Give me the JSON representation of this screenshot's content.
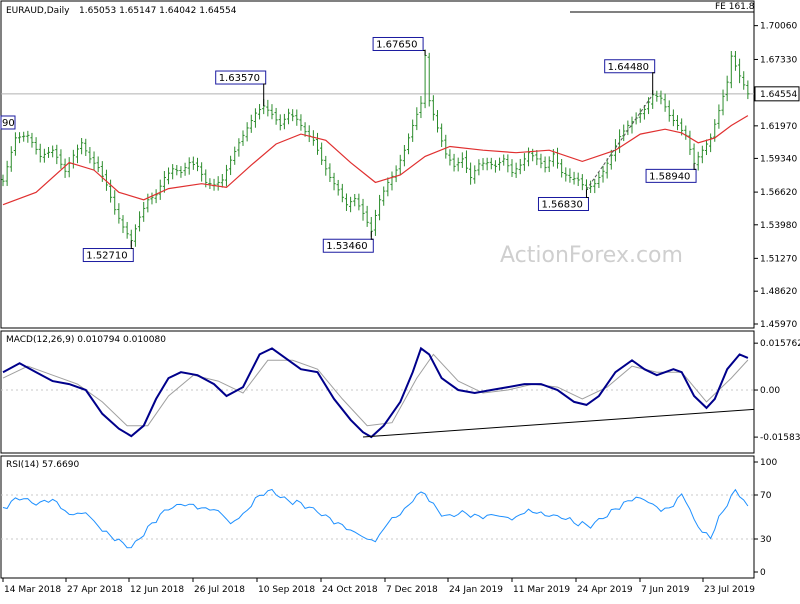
{
  "header": {
    "symbol_line": "EURAUD,Daily",
    "ohlc": "1.65053 1.65147 1.64042 1.64554",
    "fe_label": "FE 161.8"
  },
  "watermark": "ActionForex.com",
  "macd_header": "MACD(12,26,9) 0.010794 0.010080",
  "rsi_header": "RSI(14) 57.6690",
  "colors": {
    "price_bars": "#2c8c2c",
    "moving_average": "#e03030",
    "macd_line": "#00008b",
    "signal_line": "#a0a0a0",
    "rsi_line": "#1e90ff",
    "annotation_box": "#1a1aa0",
    "trendline": "#000000"
  },
  "chart_data": [
    {
      "type": "candlestick",
      "title": "EURAUD,Daily",
      "ylim": [
        1.4597,
        1.71
      ],
      "y_ticks": [
        "1.70060",
        "1.67330",
        "1.64554",
        "1.61970",
        "1.59340",
        "1.56620",
        "1.53980",
        "1.51270",
        "1.48620",
        "1.45970"
      ],
      "x_ticks": [
        "14 Mar 2018",
        "27 Apr 2018",
        "12 Jun 2018",
        "26 Jul 2018",
        "10 Sep 2018",
        "24 Oct 2018",
        "7 Dec 2018",
        "24 Jan 2019",
        "11 Mar 2019",
        "24 Apr 2019",
        "7 Jun 2019",
        "23 Jul 2019"
      ],
      "last_price": "1.64554",
      "price_path": [
        [
          0,
          1.575
        ],
        [
          3,
          1.61
        ],
        [
          6,
          1.612
        ],
        [
          9,
          1.595
        ],
        [
          12,
          1.6
        ],
        [
          15,
          1.583
        ],
        [
          17,
          1.596
        ],
        [
          19,
          1.606
        ],
        [
          21,
          1.593
        ],
        [
          23,
          1.586
        ],
        [
          25,
          1.572
        ],
        [
          27,
          1.552
        ],
        [
          29,
          1.538
        ],
        [
          31,
          1.5271
        ],
        [
          33,
          1.546
        ],
        [
          35,
          1.56
        ],
        [
          37,
          1.564
        ],
        [
          39,
          1.578
        ],
        [
          41,
          1.585
        ],
        [
          43,
          1.582
        ],
        [
          45,
          1.59
        ],
        [
          47,
          1.587
        ],
        [
          49,
          1.574
        ],
        [
          51,
          1.572
        ],
        [
          53,
          1.576
        ],
        [
          55,
          1.592
        ],
        [
          57,
          1.606
        ],
        [
          59,
          1.618
        ],
        [
          61,
          1.63
        ],
        [
          63,
          1.6357
        ],
        [
          65,
          1.629
        ],
        [
          67,
          1.62
        ],
        [
          69,
          1.63
        ],
        [
          71,
          1.625
        ],
        [
          73,
          1.615
        ],
        [
          75,
          1.608
        ],
        [
          77,
          1.592
        ],
        [
          79,
          1.578
        ],
        [
          81,
          1.568
        ],
        [
          83,
          1.556
        ],
        [
          85,
          1.561
        ],
        [
          87,
          1.549
        ],
        [
          89,
          1.5346
        ],
        [
          91,
          1.56
        ],
        [
          93,
          1.574
        ],
        [
          95,
          1.584
        ],
        [
          97,
          1.6
        ],
        [
          99,
          1.62
        ],
        [
          101,
          1.638
        ],
        [
          102,
          1.6765
        ],
        [
          103,
          1.64
        ],
        [
          105,
          1.618
        ],
        [
          107,
          1.597
        ],
        [
          109,
          1.587
        ],
        [
          111,
          1.593
        ],
        [
          113,
          1.578
        ],
        [
          115,
          1.589
        ],
        [
          117,
          1.59
        ],
        [
          119,
          1.587
        ],
        [
          121,
          1.593
        ],
        [
          123,
          1.582
        ],
        [
          125,
          1.588
        ],
        [
          127,
          1.598
        ],
        [
          129,
          1.593
        ],
        [
          131,
          1.586
        ],
        [
          133,
          1.597
        ],
        [
          135,
          1.582
        ],
        [
          137,
          1.578
        ],
        [
          139,
          1.576
        ],
        [
          141,
          1.5683
        ],
        [
          143,
          1.573
        ],
        [
          145,
          1.583
        ],
        [
          147,
          1.596
        ],
        [
          149,
          1.611
        ],
        [
          151,
          1.62
        ],
        [
          153,
          1.626
        ],
        [
          155,
          1.633
        ],
        [
          157,
          1.6448
        ],
        [
          159,
          1.642
        ],
        [
          161,
          1.628
        ],
        [
          163,
          1.62
        ],
        [
          165,
          1.612
        ],
        [
          167,
          1.5894
        ],
        [
          169,
          1.6
        ],
        [
          171,
          1.61
        ],
        [
          173,
          1.632
        ],
        [
          175,
          1.655
        ],
        [
          176,
          1.676
        ],
        [
          178,
          1.66
        ],
        [
          180,
          1.64554
        ]
      ],
      "moving_average_path": [
        [
          0,
          1.556
        ],
        [
          8,
          1.566
        ],
        [
          16,
          1.59
        ],
        [
          22,
          1.584
        ],
        [
          28,
          1.566
        ],
        [
          34,
          1.56
        ],
        [
          40,
          1.569
        ],
        [
          48,
          1.573
        ],
        [
          54,
          1.57
        ],
        [
          60,
          1.588
        ],
        [
          66,
          1.605
        ],
        [
          72,
          1.613
        ],
        [
          78,
          1.608
        ],
        [
          84,
          1.59
        ],
        [
          90,
          1.574
        ],
        [
          96,
          1.58
        ],
        [
          102,
          1.595
        ],
        [
          108,
          1.603
        ],
        [
          116,
          1.6
        ],
        [
          124,
          1.598
        ],
        [
          132,
          1.6
        ],
        [
          140,
          1.591
        ],
        [
          148,
          1.6
        ],
        [
          154,
          1.613
        ],
        [
          160,
          1.617
        ],
        [
          164,
          1.614
        ],
        [
          168,
          1.606
        ],
        [
          172,
          1.61
        ],
        [
          176,
          1.62
        ],
        [
          180,
          1.628
        ]
      ],
      "annotations": [
        {
          "text": "1.52710",
          "x": 31,
          "y": 1.5271,
          "side": "below"
        },
        {
          "text": "1.63570",
          "x": 63,
          "y": 1.6357,
          "side": "above"
        },
        {
          "text": "1.53460",
          "x": 89,
          "y": 1.5346,
          "side": "below"
        },
        {
          "text": "1.67650",
          "x": 102,
          "y": 1.6765,
          "side": "above"
        },
        {
          "text": "1.56830",
          "x": 141,
          "y": 1.5683,
          "side": "below"
        },
        {
          "text": "1.64480",
          "x": 157,
          "y": 1.6448,
          "side": "above"
        },
        {
          "text": "1.58940",
          "x": 167,
          "y": 1.5894,
          "side": "below"
        }
      ],
      "left_edge_label": "90"
    },
    {
      "type": "line",
      "title": "MACD(12,26,9) 0.010794 0.010080",
      "ylim": [
        -0.0195,
        0.0175
      ],
      "y_ticks": [
        "0.015762",
        "0.00",
        "-0.015834"
      ],
      "macd_path": [
        [
          0,
          0.006
        ],
        [
          4,
          0.009
        ],
        [
          8,
          0.006
        ],
        [
          12,
          0.003
        ],
        [
          16,
          0.002
        ],
        [
          20,
          0.0
        ],
        [
          24,
          -0.008
        ],
        [
          28,
          -0.013
        ],
        [
          31,
          -0.0155
        ],
        [
          34,
          -0.012
        ],
        [
          37,
          -0.003
        ],
        [
          40,
          0.004
        ],
        [
          43,
          0.006
        ],
        [
          47,
          0.005
        ],
        [
          51,
          0.002
        ],
        [
          54,
          -0.002
        ],
        [
          58,
          0.001
        ],
        [
          62,
          0.012
        ],
        [
          65,
          0.014
        ],
        [
          68,
          0.011
        ],
        [
          72,
          0.007
        ],
        [
          76,
          0.006
        ],
        [
          80,
          -0.003
        ],
        [
          84,
          -0.01
        ],
        [
          87,
          -0.0142
        ],
        [
          89,
          -0.0158
        ],
        [
          92,
          -0.012
        ],
        [
          96,
          -0.004
        ],
        [
          99,
          0.006
        ],
        [
          101,
          0.014
        ],
        [
          103,
          0.012
        ],
        [
          106,
          0.004
        ],
        [
          110,
          0.0
        ],
        [
          114,
          -0.001
        ],
        [
          118,
          0.0
        ],
        [
          122,
          0.001
        ],
        [
          126,
          0.002
        ],
        [
          130,
          0.002
        ],
        [
          134,
          0.0
        ],
        [
          138,
          -0.004
        ],
        [
          141,
          -0.005
        ],
        [
          144,
          -0.002
        ],
        [
          148,
          0.006
        ],
        [
          152,
          0.01
        ],
        [
          155,
          0.007
        ],
        [
          158,
          0.005
        ],
        [
          162,
          0.007
        ],
        [
          164,
          0.006
        ],
        [
          167,
          -0.002
        ],
        [
          170,
          -0.006
        ],
        [
          172,
          -0.003
        ],
        [
          175,
          0.007
        ],
        [
          178,
          0.012
        ],
        [
          180,
          0.0108
        ]
      ],
      "signal_path": [
        [
          0,
          0.004
        ],
        [
          6,
          0.008
        ],
        [
          12,
          0.005
        ],
        [
          18,
          0.002
        ],
        [
          24,
          -0.004
        ],
        [
          30,
          -0.012
        ],
        [
          35,
          -0.012
        ],
        [
          40,
          -0.002
        ],
        [
          46,
          0.005
        ],
        [
          52,
          0.003
        ],
        [
          58,
          -0.001
        ],
        [
          64,
          0.01
        ],
        [
          70,
          0.01
        ],
        [
          76,
          0.007
        ],
        [
          82,
          -0.003
        ],
        [
          88,
          -0.012
        ],
        [
          94,
          -0.011
        ],
        [
          100,
          0.004
        ],
        [
          104,
          0.012
        ],
        [
          110,
          0.003
        ],
        [
          116,
          -0.001
        ],
        [
          122,
          0.0
        ],
        [
          128,
          0.002
        ],
        [
          134,
          0.001
        ],
        [
          140,
          -0.003
        ],
        [
          146,
          0.001
        ],
        [
          152,
          0.008
        ],
        [
          158,
          0.006
        ],
        [
          164,
          0.006
        ],
        [
          170,
          -0.004
        ],
        [
          176,
          0.004
        ],
        [
          180,
          0.0101
        ]
      ],
      "trendline": [
        [
          87,
          -0.0158
        ],
        [
          185,
          -0.0065
        ]
      ]
    },
    {
      "type": "line",
      "title": "RSI(14) 57.6690",
      "ylim": [
        0,
        100
      ],
      "y_ticks": [
        "100",
        "70",
        "30",
        "0"
      ],
      "levels": [
        70,
        30
      ],
      "rsi_path": [
        [
          0,
          58
        ],
        [
          4,
          68
        ],
        [
          8,
          62
        ],
        [
          12,
          66
        ],
        [
          16,
          52
        ],
        [
          20,
          54
        ],
        [
          24,
          38
        ],
        [
          28,
          28
        ],
        [
          31,
          22
        ],
        [
          34,
          35
        ],
        [
          37,
          48
        ],
        [
          40,
          58
        ],
        [
          44,
          62
        ],
        [
          48,
          58
        ],
        [
          52,
          56
        ],
        [
          55,
          44
        ],
        [
          58,
          52
        ],
        [
          62,
          70
        ],
        [
          65,
          74
        ],
        [
          68,
          66
        ],
        [
          72,
          62
        ],
        [
          76,
          55
        ],
        [
          80,
          46
        ],
        [
          84,
          38
        ],
        [
          88,
          30
        ],
        [
          90,
          28
        ],
        [
          93,
          45
        ],
        [
          97,
          56
        ],
        [
          100,
          70
        ],
        [
          102,
          72
        ],
        [
          104,
          60
        ],
        [
          107,
          50
        ],
        [
          111,
          54
        ],
        [
          115,
          50
        ],
        [
          119,
          52
        ],
        [
          123,
          48
        ],
        [
          127,
          56
        ],
        [
          131,
          52
        ],
        [
          135,
          50
        ],
        [
          139,
          44
        ],
        [
          142,
          42
        ],
        [
          146,
          52
        ],
        [
          150,
          62
        ],
        [
          153,
          68
        ],
        [
          156,
          64
        ],
        [
          159,
          56
        ],
        [
          162,
          60
        ],
        [
          164,
          72
        ],
        [
          167,
          48
        ],
        [
          169,
          36
        ],
        [
          171,
          32
        ],
        [
          174,
          56
        ],
        [
          177,
          74
        ],
        [
          179,
          66
        ],
        [
          180,
          57.67
        ]
      ]
    }
  ]
}
